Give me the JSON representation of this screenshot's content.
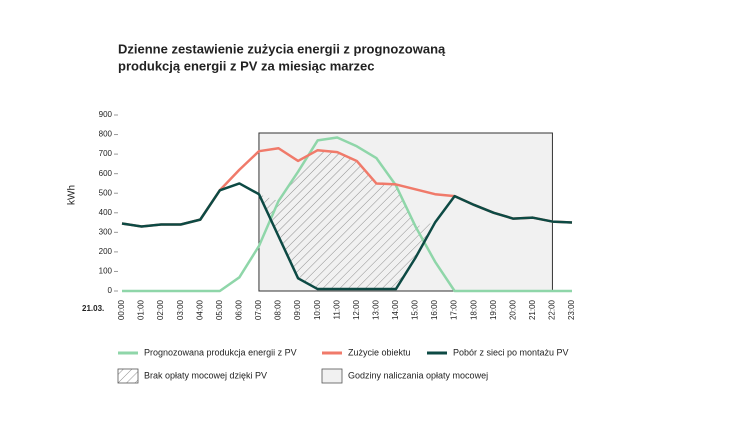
{
  "chart_data": {
    "type": "line",
    "title": [
      "Dzienne zestawienie zużycia energii z prognozowaną",
      "produkcją energii z PV za miesiąc marzec"
    ],
    "y_label": "kWh",
    "date_label": "21.03.",
    "categories": [
      "00:00",
      "01:00",
      "02:00",
      "03:00",
      "04:00",
      "05:00",
      "06:00",
      "07:00",
      "08:00",
      "09:00",
      "10:00",
      "11:00",
      "12:00",
      "13:00",
      "14:00",
      "15:00",
      "16:00",
      "17:00",
      "18:00",
      "19:00",
      "20:00",
      "21:00",
      "22:00",
      "23:00"
    ],
    "series": [
      {
        "name": "Prognozowana produkcja energii z PV",
        "color": "#8fd6a9",
        "values": [
          0,
          0,
          0,
          0,
          0,
          0,
          70,
          230,
          460,
          610,
          770,
          785,
          740,
          680,
          540,
          330,
          150,
          0,
          0,
          0,
          0,
          0,
          0,
          0
        ]
      },
      {
        "name": "Zużycie obiektu",
        "color": "#f07a6a",
        "values": [
          345,
          330,
          340,
          340,
          365,
          515,
          620,
          715,
          730,
          665,
          720,
          710,
          665,
          550,
          545,
          520,
          495,
          485,
          440,
          400,
          370,
          375,
          355,
          350
        ]
      },
      {
        "name": "Pobór z sieci po montażu PV",
        "color": "#0d4a44",
        "values": [
          345,
          330,
          340,
          340,
          365,
          515,
          550,
          495,
          280,
          65,
          10,
          10,
          10,
          10,
          10,
          170,
          350,
          485,
          440,
          400,
          370,
          375,
          355,
          350
        ]
      }
    ],
    "legend_extra": [
      "Brak opłaty mocowej dzięki PV",
      "Godziny naliczania opłaty mocowej"
    ],
    "ylim": [
      0,
      900
    ],
    "yticks": [
      0,
      100,
      200,
      300,
      400,
      500,
      600,
      700,
      800,
      900
    ]
  }
}
